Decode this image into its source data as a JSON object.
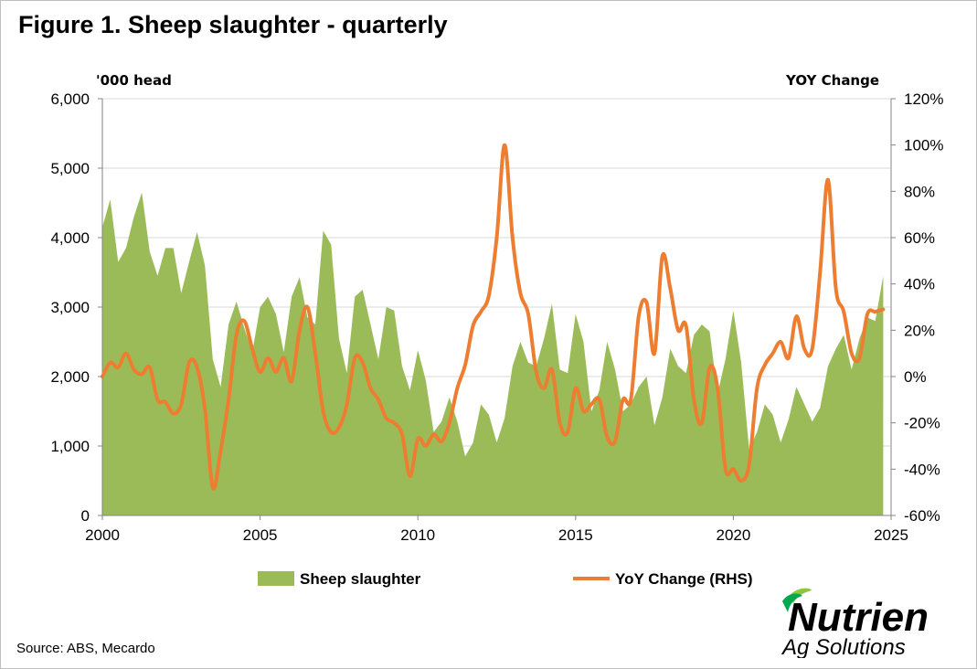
{
  "title": "Figure 1. Sheep slaughter - quarterly",
  "source": "Source: ABS, Mecardo",
  "logo": {
    "text_line1": "Nutrien",
    "text_line2": "Ag Solutions",
    "icon": "nutrien-leaf-icon"
  },
  "colors": {
    "area": "#9bbb59",
    "line": "#ed7d31",
    "grid": "#d9d9d9"
  },
  "chart_data": {
    "type": "area",
    "left_axis_label": "'000 head",
    "right_axis_label": "YOY Change",
    "ylim": [
      0,
      6000
    ],
    "ylim_right": [
      -60,
      120
    ],
    "y_ticks": [
      "0",
      "1,000",
      "2,000",
      "3,000",
      "4,000",
      "5,000",
      "6,000"
    ],
    "y_ticks_right": [
      "-60%",
      "-40%",
      "-20%",
      "0%",
      "20%",
      "40%",
      "60%",
      "80%",
      "100%",
      "120%"
    ],
    "x_ticks": [
      "2000",
      "2005",
      "2010",
      "2015",
      "2020",
      "2025"
    ],
    "xlim": [
      2000,
      2025
    ],
    "grid": true,
    "legend_position": "bottom",
    "series": [
      {
        "name": "Sheep slaughter",
        "type": "area",
        "axis": "left",
        "x": [
          2000.0,
          2000.25,
          2000.5,
          2000.75,
          2001.0,
          2001.25,
          2001.5,
          2001.75,
          2002.0,
          2002.25,
          2002.5,
          2002.75,
          2003.0,
          2003.25,
          2003.5,
          2003.75,
          2004.0,
          2004.25,
          2004.5,
          2004.75,
          2005.0,
          2005.25,
          2005.5,
          2005.75,
          2006.0,
          2006.25,
          2006.5,
          2006.75,
          2007.0,
          2007.25,
          2007.5,
          2007.75,
          2008.0,
          2008.25,
          2008.5,
          2008.75,
          2009.0,
          2009.25,
          2009.5,
          2009.75,
          2010.0,
          2010.25,
          2010.5,
          2010.75,
          2011.0,
          2011.25,
          2011.5,
          2011.75,
          2012.0,
          2012.25,
          2012.5,
          2012.75,
          2013.0,
          2013.25,
          2013.5,
          2013.75,
          2014.0,
          2014.25,
          2014.5,
          2014.75,
          2015.0,
          2015.25,
          2015.5,
          2015.75,
          2016.0,
          2016.25,
          2016.5,
          2016.75,
          2017.0,
          2017.25,
          2017.5,
          2017.75,
          2018.0,
          2018.25,
          2018.5,
          2018.75,
          2019.0,
          2019.25,
          2019.5,
          2019.75,
          2020.0,
          2020.25,
          2020.5,
          2020.75,
          2021.0,
          2021.25,
          2021.5,
          2021.75,
          2022.0,
          2022.25,
          2022.5,
          2022.75,
          2023.0,
          2023.25,
          2023.5,
          2023.75,
          2024.0,
          2024.25,
          2024.5,
          2024.75
        ],
        "values": [
          4150,
          4550,
          3650,
          3850,
          4300,
          4650,
          3800,
          3450,
          3850,
          3850,
          3200,
          3650,
          4080,
          3600,
          2250,
          1850,
          2750,
          3080,
          2700,
          2350,
          3000,
          3150,
          2900,
          2350,
          3150,
          3430,
          2850,
          2750,
          4100,
          3900,
          2550,
          2050,
          3150,
          3250,
          2750,
          2250,
          3000,
          2950,
          2150,
          1800,
          2380,
          1950,
          1200,
          1350,
          1700,
          1350,
          850,
          1050,
          1600,
          1450,
          1050,
          1400,
          2150,
          2500,
          2200,
          2150,
          2550,
          3050,
          2100,
          2050,
          2900,
          2500,
          1500,
          1800,
          2500,
          2100,
          1500,
          1600,
          1850,
          2000,
          1300,
          1700,
          2400,
          2150,
          2050,
          2600,
          2750,
          2650,
          1750,
          2250,
          2950,
          2200,
          950,
          1200,
          1600,
          1450,
          1050,
          1380,
          1850,
          1600,
          1350,
          1550,
          2150,
          2400,
          2600,
          2100,
          2550,
          2850,
          2800,
          3450
        ]
      },
      {
        "name": "YoY Change (RHS)",
        "type": "line",
        "axis": "right",
        "x": [
          2000.0,
          2000.25,
          2000.5,
          2000.75,
          2001.0,
          2001.25,
          2001.5,
          2001.75,
          2002.0,
          2002.25,
          2002.5,
          2002.75,
          2003.0,
          2003.25,
          2003.5,
          2003.75,
          2004.0,
          2004.25,
          2004.5,
          2004.75,
          2005.0,
          2005.25,
          2005.5,
          2005.75,
          2006.0,
          2006.25,
          2006.5,
          2006.75,
          2007.0,
          2007.25,
          2007.5,
          2007.75,
          2008.0,
          2008.25,
          2008.5,
          2008.75,
          2009.0,
          2009.25,
          2009.5,
          2009.75,
          2010.0,
          2010.25,
          2010.5,
          2010.75,
          2011.0,
          2011.25,
          2011.5,
          2011.75,
          2012.0,
          2012.25,
          2012.5,
          2012.75,
          2013.0,
          2013.25,
          2013.5,
          2013.75,
          2014.0,
          2014.25,
          2014.5,
          2014.75,
          2015.0,
          2015.25,
          2015.5,
          2015.75,
          2016.0,
          2016.25,
          2016.5,
          2016.75,
          2017.0,
          2017.25,
          2017.5,
          2017.75,
          2018.0,
          2018.25,
          2018.5,
          2018.75,
          2019.0,
          2019.25,
          2019.5,
          2019.75,
          2020.0,
          2020.25,
          2020.5,
          2020.75,
          2021.0,
          2021.25,
          2021.5,
          2021.75,
          2022.0,
          2022.25,
          2022.5,
          2022.75,
          2023.0,
          2023.25,
          2023.5,
          2023.75,
          2024.0,
          2024.25,
          2024.5,
          2024.75
        ],
        "values": [
          0,
          6,
          4,
          10,
          3,
          1,
          4,
          -10,
          -11,
          -16,
          -12,
          6,
          4,
          -14,
          -48,
          -32,
          -10,
          18,
          24,
          12,
          2,
          8,
          2,
          8,
          -2,
          20,
          30,
          10,
          -15,
          -24,
          -22,
          -12,
          8,
          6,
          -5,
          -10,
          -18,
          -20,
          -25,
          -43,
          -27,
          -30,
          -25,
          -28,
          -20,
          -5,
          5,
          22,
          28,
          35,
          60,
          100,
          60,
          36,
          27,
          2,
          -5,
          3,
          -20,
          -24,
          -5,
          -15,
          -12,
          -10,
          -26,
          -28,
          -10,
          -10,
          26,
          32,
          10,
          52,
          38,
          20,
          22,
          -10,
          -20,
          4,
          -5,
          -40,
          -40,
          -45,
          -38,
          -5,
          5,
          10,
          15,
          8,
          26,
          12,
          12,
          45,
          85,
          38,
          28,
          10,
          8,
          27,
          28,
          29
        ]
      }
    ]
  }
}
